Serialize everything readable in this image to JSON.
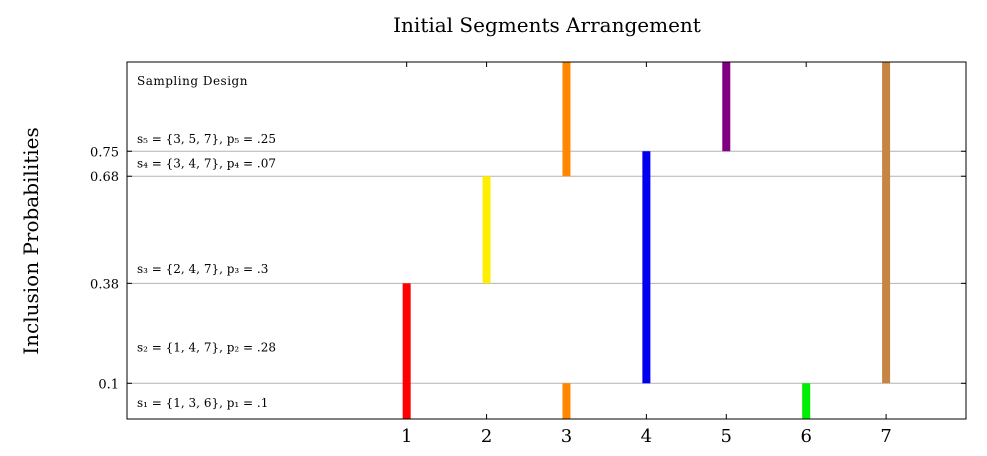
{
  "chart_data": {
    "type": "bar",
    "title": "Initial Segments Arrangement",
    "xlabel": "",
    "ylabel": "Inclusion Probabilities",
    "x_ticks": [
      "1",
      "2",
      "3",
      "4",
      "5",
      "6",
      "7"
    ],
    "xlim": [
      -2.5,
      8
    ],
    "ylim": [
      0,
      1
    ],
    "y_ticks": [
      {
        "value": 0.1,
        "label": "0.1"
      },
      {
        "value": 0.38,
        "label": "0.38"
      },
      {
        "value": 0.68,
        "label": "0.68"
      },
      {
        "value": 0.75,
        "label": "0.75"
      }
    ],
    "grid": {
      "horizontal_at_ticks": true
    },
    "segments": [
      {
        "x": 1,
        "y0": 0.0,
        "y1": 0.38,
        "color": "#ff0000"
      },
      {
        "x": 2,
        "y0": 0.38,
        "y1": 0.68,
        "color": "#ffee00"
      },
      {
        "x": 3,
        "y0": 0.0,
        "y1": 0.1,
        "color": "#ff8800"
      },
      {
        "x": 3,
        "y0": 0.68,
        "y1": 1.0,
        "color": "#ff8800"
      },
      {
        "x": 4,
        "y0": 0.1,
        "y1": 0.75,
        "color": "#0000ee"
      },
      {
        "x": 5,
        "y0": 0.75,
        "y1": 1.0,
        "color": "#800080"
      },
      {
        "x": 6,
        "y0": 0.0,
        "y1": 0.1,
        "color": "#00ee00"
      },
      {
        "x": 7,
        "y0": 0.1,
        "y1": 1.0,
        "color": "#c68642"
      }
    ],
    "sampling_design_label": "Sampling Design",
    "samples": [
      {
        "label": "s₁ = {1, 3, 6}, p₁ = .1",
        "y": 0.045
      },
      {
        "label": "s₂ = {1, 4, 7}, p₂ = .28",
        "y": 0.2
      },
      {
        "label": "s₃ = {2, 4, 7}, p₃ = .3",
        "y": 0.42
      },
      {
        "label": "s₄ = {3, 4, 7}, p₄ = .07",
        "y": 0.715
      },
      {
        "label": "s₅ = {3, 5, 7}, p₅ = .25",
        "y": 0.785
      }
    ]
  }
}
